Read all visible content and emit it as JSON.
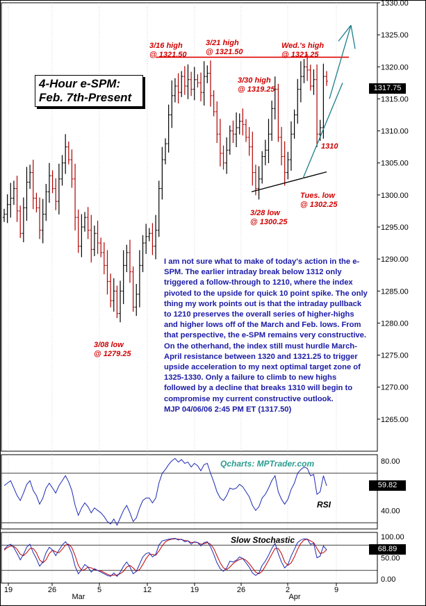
{
  "chart_data": {
    "type": "candlestick",
    "title_lines": [
      "4-Hour e-SPM:",
      "Feb. 7th-Present"
    ],
    "price_axis": {
      "min": 1260,
      "max": 1330,
      "ticks": [
        1265,
        1270,
        1275,
        1280,
        1285,
        1290,
        1295,
        1300,
        1305,
        1310,
        1315,
        1320,
        1325,
        1330
      ],
      "tick_labels": [
        "1265.00",
        "1270.00",
        "1275.00",
        "1280.00",
        "1285.00",
        "1290.00",
        "1295.00",
        "1300.00",
        "1305.00",
        "1310.00",
        "1315.00",
        "1320.00",
        "1325.00",
        "1330.00"
      ]
    },
    "last_price_label": "1317.75",
    "last_price": 1317.75,
    "x_axis": {
      "tick_labels": [
        "19",
        "26",
        "5",
        "12",
        "19",
        "26",
        "2",
        "9"
      ],
      "month_labels": [
        "Mar",
        "Apr"
      ]
    },
    "resistance_level": 1321.5,
    "annotations": [
      {
        "lines": [
          "3/16 high",
          "@ 1321.50"
        ]
      },
      {
        "lines": [
          "3/21 high",
          "@ 1321.50"
        ]
      },
      {
        "lines": [
          "Wed.'s high",
          "@ 1321.25"
        ]
      },
      {
        "lines": [
          "3/30 high",
          "@ 1319.25"
        ]
      },
      {
        "lines": [
          "1310"
        ]
      },
      {
        "lines": [
          "Tues. low",
          "@ 1302.25"
        ]
      },
      {
        "lines": [
          "3/28 low",
          "@ 1300.25"
        ]
      },
      {
        "lines": [
          "3/08 low",
          "@ 1279.25"
        ]
      }
    ],
    "closes": [
      1297.0,
      1298.5,
      1299.5,
      1301.0,
      1297.5,
      1294.0,
      1298.0,
      1302.0,
      1303.5,
      1299.5,
      1298.0,
      1294.5,
      1297.0,
      1300.5,
      1303.0,
      1301.0,
      1299.0,
      1302.5,
      1305.0,
      1307.5,
      1305.5,
      1302.5,
      1296.5,
      1292.0,
      1295.0,
      1296.5,
      1294.5,
      1291.5,
      1294.0,
      1292.5,
      1291.0,
      1289.0,
      1286.5,
      1283.5,
      1285.0,
      1281.5,
      1285.0,
      1289.0,
      1291.0,
      1288.0,
      1282.5,
      1284.5,
      1289.0,
      1292.5,
      1293.5,
      1294.0,
      1292.0,
      1294.5,
      1301.0,
      1305.5,
      1308.0,
      1312.5,
      1315.5,
      1317.0,
      1316.0,
      1318.5,
      1317.0,
      1318.0,
      1316.5,
      1318.0,
      1317.5,
      1316.0,
      1318.5,
      1319.0,
      1315.5,
      1313.0,
      1309.5,
      1306.5,
      1305.0,
      1307.0,
      1310.0,
      1309.5,
      1310.5,
      1311.5,
      1311.0,
      1309.0,
      1307.5,
      1303.5,
      1301.0,
      1302.5,
      1306.0,
      1307.0,
      1309.5,
      1313.5,
      1316.5,
      1309.0,
      1306.0,
      1303.5,
      1305.5,
      1309.5,
      1312.5,
      1316.5,
      1318.5,
      1320.0,
      1319.5,
      1317.0,
      1318.0,
      1309.5,
      1310.5,
      1318.5,
      1317.75
    ],
    "rsi": {
      "label": "RSI",
      "last": "59.82",
      "ticks": [
        "80.00",
        "40.00"
      ],
      "levels": [
        70,
        30
      ],
      "min": 25,
      "max": 85,
      "values": [
        60,
        62,
        64,
        58,
        52,
        48,
        54,
        61,
        64,
        56,
        52,
        45,
        50,
        58,
        62,
        58,
        54,
        60,
        64,
        68,
        63,
        56,
        44,
        36,
        42,
        46,
        43,
        38,
        42,
        40,
        38,
        35,
        31,
        29,
        33,
        28,
        34,
        40,
        44,
        38,
        31,
        34,
        42,
        48,
        50,
        50,
        46,
        50,
        62,
        70,
        73,
        77,
        80,
        82,
        79,
        81,
        78,
        79,
        75,
        78,
        76,
        72,
        77,
        78,
        70,
        63,
        55,
        50,
        48,
        52,
        58,
        57,
        58,
        61,
        59,
        55,
        51,
        44,
        40,
        43,
        50,
        53,
        58,
        64,
        68,
        55,
        49,
        45,
        49,
        57,
        62,
        70,
        73,
        75,
        74,
        68,
        69,
        53,
        55,
        68,
        59.82
      ]
    },
    "stochastic": {
      "label": "Slow Stochastic",
      "last": "68.89",
      "ticks": [
        "100.00",
        "50.00",
        "0.00"
      ],
      "levels": [
        80,
        20
      ],
      "min": -10,
      "max": 110,
      "k": [
        70,
        78,
        82,
        74,
        60,
        45,
        58,
        75,
        82,
        62,
        48,
        30,
        40,
        62,
        75,
        68,
        55,
        68,
        80,
        88,
        78,
        60,
        30,
        12,
        22,
        34,
        28,
        16,
        24,
        20,
        16,
        12,
        8,
        6,
        14,
        6,
        16,
        30,
        40,
        28,
        12,
        18,
        35,
        52,
        60,
        62,
        52,
        58,
        80,
        90,
        92,
        94,
        95,
        96,
        92,
        94,
        88,
        90,
        82,
        88,
        86,
        78,
        86,
        88,
        76,
        58,
        38,
        24,
        18,
        26,
        42,
        40,
        44,
        52,
        48,
        38,
        28,
        14,
        8,
        14,
        32,
        42,
        56,
        72,
        84,
        60,
        40,
        26,
        34,
        54,
        70,
        86,
        92,
        95,
        94,
        82,
        84,
        50,
        54,
        78,
        68.89
      ],
      "d": [
        68,
        74,
        78,
        77,
        70,
        58,
        55,
        62,
        72,
        72,
        62,
        45,
        38,
        45,
        60,
        68,
        64,
        62,
        70,
        80,
        82,
        74,
        55,
        32,
        20,
        22,
        28,
        26,
        22,
        20,
        19,
        15,
        11,
        8,
        9,
        9,
        12,
        18,
        28,
        32,
        26,
        18,
        22,
        34,
        48,
        58,
        58,
        56,
        66,
        78,
        88,
        92,
        94,
        95,
        94,
        93,
        91,
        90,
        86,
        87,
        86,
        82,
        83,
        86,
        82,
        72,
        55,
        38,
        26,
        22,
        28,
        36,
        42,
        46,
        48,
        44,
        36,
        26,
        16,
        12,
        18,
        30,
        44,
        58,
        72,
        72,
        60,
        40,
        32,
        38,
        52,
        70,
        84,
        92,
        94,
        90,
        86,
        72,
        60,
        62,
        68.89
      ]
    }
  },
  "commentary": {
    "paragraph": "I am not sure what to make of today's action in the e-SPM. The earlier intraday break below 1312 only triggered a follow-through to 1210, where the index pivoted to the upside for quick 10 point spike. The only thing my work points out is that the intraday pullback to 1210 preserves the overall series of higher-highs and higher lows off of the March and Feb. lows.  From that perspective, the e-SPM remains very constructive. On the otherhand, the index still must hurdle March-April resistance between 1320 and 1321.25 to trigger upside acceleration to my next optimal target zone of 1325-1330. Only a failure to climb to new highs followed by a decline that breaks 1310 will begin to compromise my current constructive outlook.",
    "signature": "MJP 04/06/06 2:45 PM ET  (1317.50)"
  },
  "watermark": "Qcharts: MPTrader.com"
}
